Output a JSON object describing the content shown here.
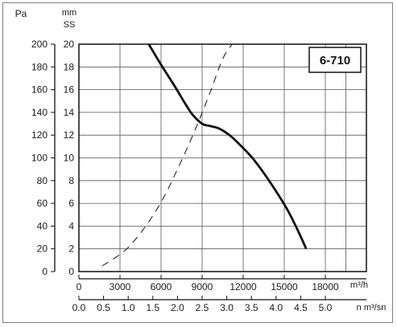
{
  "chart_data": {
    "type": "line",
    "badge": "6-710",
    "y_left": {
      "unit": "Pa",
      "ticks": [
        0,
        20,
        40,
        60,
        80,
        100,
        120,
        140,
        160,
        180,
        200
      ],
      "range": [
        0,
        200
      ]
    },
    "y_inner": {
      "unit_top": "mm",
      "unit_bottom": "SS",
      "ticks": [
        0,
        2,
        4,
        6,
        8,
        10,
        12,
        14,
        16,
        18,
        20
      ],
      "range": [
        0,
        20
      ]
    },
    "x_primary": {
      "unit": "m³/h",
      "ticks": [
        0,
        3000,
        6000,
        9000,
        12000,
        15000,
        18000
      ],
      "range": [
        0,
        21000
      ]
    },
    "x_secondary": {
      "unit": "n m³/sn",
      "ticks": [
        "0.0",
        "0.5",
        "1.0",
        "1.5",
        "2.0",
        "2.5",
        "3.0",
        "3.5",
        "4.0",
        "4.5",
        "5.0"
      ],
      "range": [
        0,
        5.833
      ]
    },
    "grid": true,
    "series": [
      {
        "style": "solid",
        "x": [
          5100,
          6000,
          7000,
          7800,
          8300,
          9000,
          9600,
          10200,
          11000,
          11800,
          12800,
          14000,
          15200,
          16000,
          16600
        ],
        "y": [
          200,
          182,
          163,
          147,
          138,
          130,
          128,
          126,
          120,
          111,
          98,
          78,
          55,
          36,
          20
        ]
      },
      {
        "style": "dashed",
        "x": [
          1700,
          2500,
          3500,
          4700,
          6000,
          7200,
          8500,
          9500,
          10500,
          11200
        ],
        "y": [
          5,
          11,
          20,
          37,
          61,
          90,
          125,
          155,
          187,
          200
        ]
      }
    ]
  }
}
